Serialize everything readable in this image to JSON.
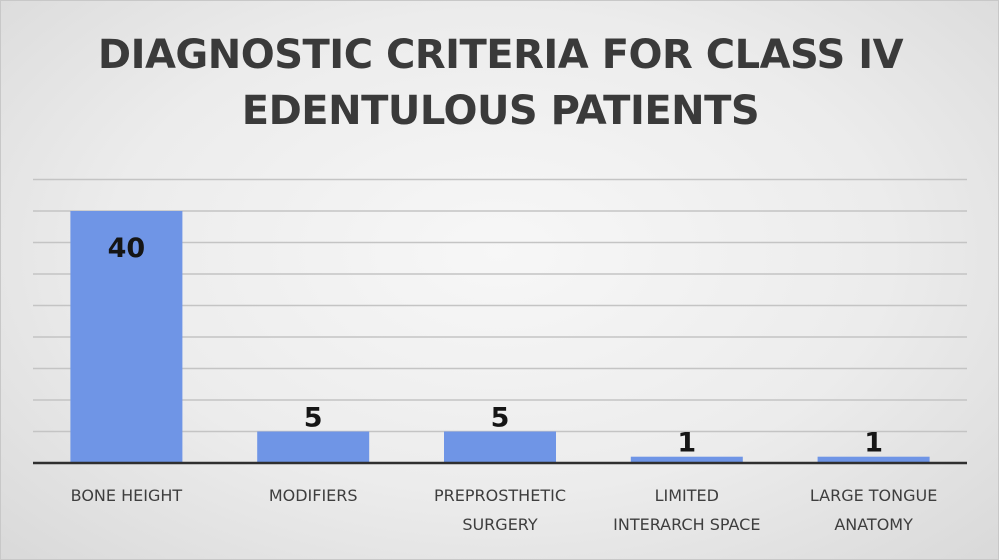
{
  "chart_data": {
    "type": "bar",
    "title_lines": [
      "DIAGNOSTIC CRITERIA FOR CLASS IV",
      "EDENTULOUS PATIENTS"
    ],
    "categories": [
      [
        "BONE HEIGHT"
      ],
      [
        "MODIFIERS"
      ],
      [
        "PREPROSTHETIC",
        "SURGERY"
      ],
      [
        "LIMITED",
        "INTERARCH SPACE"
      ],
      [
        "LARGE TONGUE",
        "ANATOMY"
      ]
    ],
    "values": [
      40,
      5,
      5,
      1,
      1
    ],
    "data_labels": [
      "40",
      "5",
      "5",
      "1",
      "1"
    ],
    "ylim": [
      0,
      45
    ],
    "gridlines": true,
    "legend": "none",
    "bar_color": "#6f95e6",
    "data_label_color": "#151515"
  }
}
